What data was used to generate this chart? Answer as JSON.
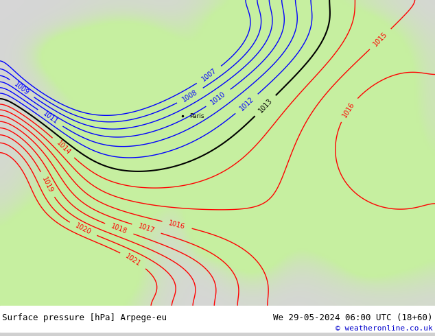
{
  "title_left": "Surface pressure [hPa] Arpege-eu",
  "title_right": "We 29-05-2024 06:00 UTC (18+60)",
  "copyright": "© weatheronline.co.uk",
  "title_fontsize": 9,
  "copyright_fontsize": 8,
  "bg_color": "#d0d0d0",
  "land_color": "#c8f0a0",
  "sea_color": "#d8d8d8",
  "blue_contour_color": "#0000ff",
  "black_contour_color": "#000000",
  "red_contour_color": "#ff0000",
  "label_fontsize": 7,
  "figsize": [
    6.34,
    4.9
  ],
  "dpi": 100
}
